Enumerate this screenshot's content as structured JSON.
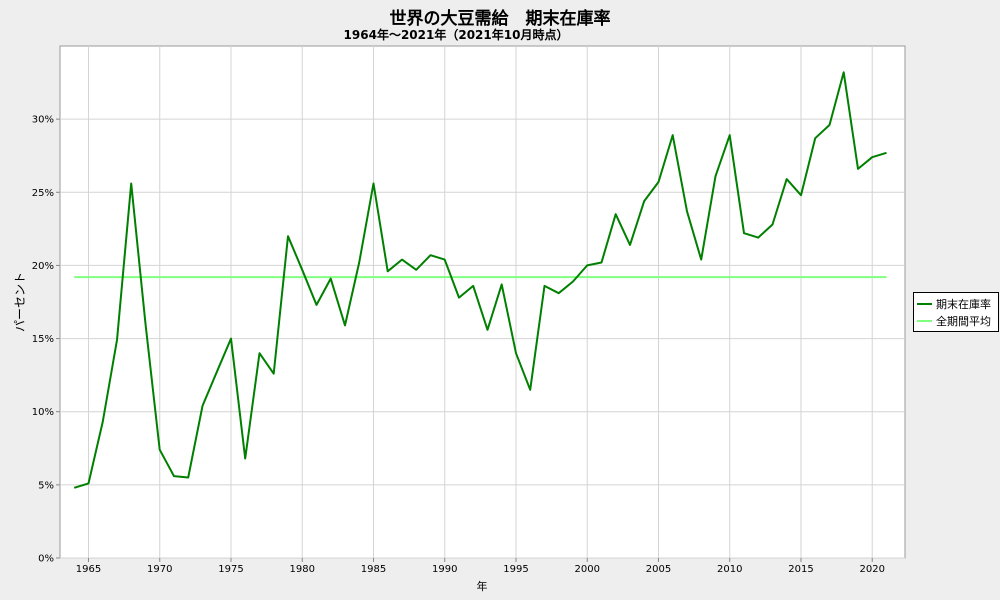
{
  "chart_data": {
    "type": "line",
    "title": "世界の大豆需給　期末在庫率",
    "subtitle": "1964年～2021年（2021年10月時点）",
    "xlabel": "年",
    "ylabel": "パーセント",
    "xlim": [
      1963.0,
      2022.3
    ],
    "ylim": [
      0,
      35
    ],
    "x_ticks": [
      1965,
      1970,
      1975,
      1980,
      1985,
      1990,
      1995,
      2000,
      2005,
      2010,
      2015,
      2020
    ],
    "y_ticks": [
      0,
      5,
      10,
      15,
      20,
      25,
      30
    ],
    "y_tick_labels": [
      "0%",
      "5%",
      "10%",
      "15%",
      "20%",
      "25%",
      "30%"
    ],
    "grid": true,
    "legend_position": "right",
    "series": [
      {
        "name": "期末在庫率",
        "color": "#008000",
        "x": [
          1964,
          1965,
          1966,
          1967,
          1968,
          1969,
          1970,
          1971,
          1972,
          1973,
          1974,
          1975,
          1976,
          1977,
          1978,
          1979,
          1980,
          1981,
          1982,
          1983,
          1984,
          1985,
          1986,
          1987,
          1988,
          1989,
          1990,
          1991,
          1992,
          1993,
          1994,
          1995,
          1996,
          1997,
          1998,
          1999,
          2000,
          2001,
          2002,
          2003,
          2004,
          2005,
          2006,
          2007,
          2008,
          2009,
          2010,
          2011,
          2012,
          2013,
          2014,
          2015,
          2016,
          2017,
          2018,
          2019,
          2020,
          2021
        ],
        "values": [
          4.8,
          5.1,
          9.3,
          14.9,
          25.6,
          16.0,
          7.4,
          5.6,
          5.5,
          10.4,
          12.7,
          15.0,
          6.8,
          14.0,
          12.6,
          22.0,
          19.7,
          17.3,
          19.1,
          15.9,
          20.2,
          25.6,
          19.6,
          20.4,
          19.7,
          20.7,
          20.4,
          17.8,
          18.6,
          15.6,
          18.7,
          14.0,
          11.5,
          18.6,
          18.1,
          18.9,
          20.0,
          20.2,
          23.5,
          21.4,
          24.4,
          25.7,
          28.9,
          23.7,
          20.4,
          26.1,
          28.9,
          22.2,
          21.9,
          22.8,
          25.9,
          24.8,
          28.7,
          29.6,
          33.2,
          26.6,
          27.4,
          27.7
        ]
      },
      {
        "name": "全期間平均",
        "color": "#80ff80",
        "x": [
          1964,
          2021
        ],
        "values": [
          19.2,
          19.2
        ]
      }
    ]
  }
}
